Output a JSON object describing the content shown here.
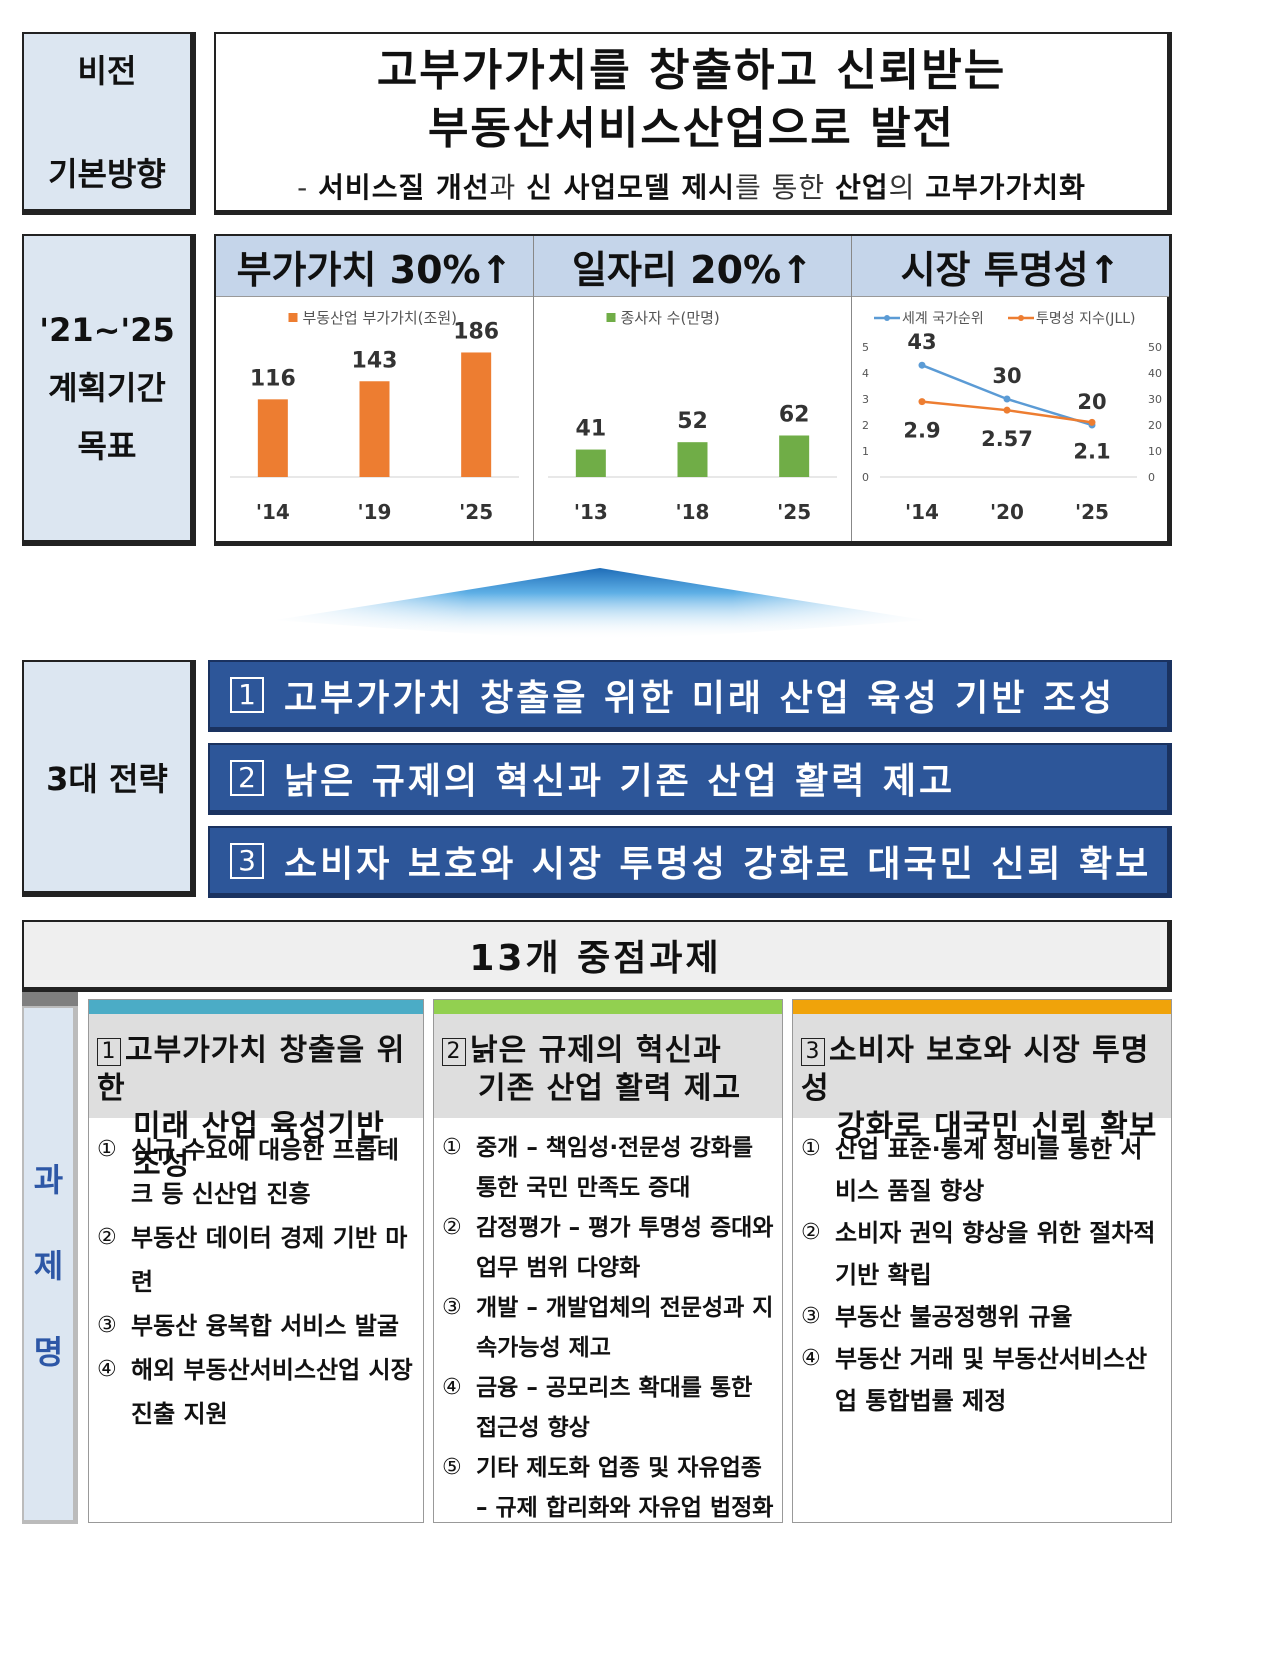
{
  "vision": {
    "label_top": "비전",
    "label_bottom": "기본방향",
    "title_line1": "고부가가치를 창출하고 신뢰받는",
    "title_line2": "부동산서비스산업으로 발전",
    "sub": {
      "dash": "- ",
      "p1": "서비스질 개선",
      "p2": "과 ",
      "p3": "신 사업모델 제시",
      "p4": "를 통한 ",
      "p5": "산업",
      "p6": "의 ",
      "p7": "고부가가치화"
    }
  },
  "targets": {
    "label_line1": "'21~'25",
    "label_line2": "계획기간",
    "label_line3": "목표",
    "goals": [
      {
        "head": "부가가치 30%↑"
      },
      {
        "head": "일자리 20%↑"
      },
      {
        "head": "시장 투명성↑"
      }
    ]
  },
  "chart_data": [
    {
      "type": "bar",
      "legend": "부동산업 부가가치(조원)",
      "categories": [
        "'14",
        "'19",
        "'25"
      ],
      "values": [
        116,
        143,
        186
      ],
      "color": "#ed7d31"
    },
    {
      "type": "bar",
      "legend": "종사자 수(만명)",
      "categories": [
        "'13",
        "'18",
        "'25"
      ],
      "values": [
        41,
        52,
        62
      ],
      "color": "#70ad47"
    },
    {
      "type": "line",
      "categories": [
        "'14",
        "'20",
        "'25"
      ],
      "series": [
        {
          "name": "세계 국가순위",
          "values": [
            43,
            30,
            20
          ],
          "axis": "right",
          "color": "#5b9bd5",
          "labels": [
            "43",
            "30",
            "20"
          ]
        },
        {
          "name": "투명성 지수(JLL)",
          "values": [
            2.9,
            2.57,
            2.1
          ],
          "axis": "left",
          "color": "#ed7d31",
          "labels": [
            "2.9",
            "2.57",
            "2.1"
          ]
        }
      ],
      "left_ticks": [
        "0",
        "1",
        "2",
        "3",
        "4",
        "5"
      ],
      "right_ticks": [
        "0",
        "10",
        "20",
        "30",
        "40",
        "50"
      ],
      "left_range": [
        0,
        5
      ],
      "right_range": [
        0,
        50
      ]
    }
  ],
  "strategies": {
    "label": "3대 전략",
    "items": [
      {
        "num": "1",
        "text": "고부가가치 창출을 위한 미래 산업 육성 기반 조성"
      },
      {
        "num": "2",
        "text": "낡은 규제의 혁신과 기존 산업 활력 제고"
      },
      {
        "num": "3",
        "text": "소비자 보호와 시장 투명성 강화로 대국민 신뢰 확보"
      }
    ]
  },
  "tasks": {
    "header": "13개 중점과제",
    "side_label": [
      "과",
      "제",
      "명"
    ],
    "columns": [
      {
        "num": "1",
        "title1": "고부가가치 창출을 위한",
        "title2": "미래 산업 육성기반 조성",
        "color": "#4bacc6",
        "items": [
          {
            "num": "①",
            "text": "신규 수요에 대응한 프롭테크 등 신산업 진흥"
          },
          {
            "num": "②",
            "text": "부동산 데이터 경제 기반 마련"
          },
          {
            "num": "③",
            "text": "부동산 융복합 서비스 발굴"
          },
          {
            "num": "④",
            "text": "해외 부동산서비스산업 시장 진출 지원"
          }
        ]
      },
      {
        "num": "2",
        "title1": "낡은 규제의 혁신과",
        "title2": "기존 산업 활력 제고",
        "color": "#92d050",
        "items": [
          {
            "num": "①",
            "text": "중개 – 책임성·전문성 강화를 통한 국민 만족도 증대"
          },
          {
            "num": "②",
            "text": "감정평가 – 평가 투명성 증대와 업무 범위 다양화"
          },
          {
            "num": "③",
            "text": "개발 – 개발업체의 전문성과 지속가능성 제고"
          },
          {
            "num": "④",
            "text": "금융 – 공모리츠 확대를 통한 접근성 향상"
          },
          {
            "num": "⑤",
            "text": "기타 제도화 업종 및 자유업종 – 규제 합리화와 자유업 법정화"
          }
        ]
      },
      {
        "num": "3",
        "title1": "소비자 보호와 시장 투명성",
        "title2": "강화로 대국민 신뢰 확보",
        "color": "#f0a30a",
        "items": [
          {
            "num": "①",
            "text": "산업 표준·통계 정비를 통한 서비스 품질 향상"
          },
          {
            "num": "②",
            "text": "소비자 권익 향상을 위한 절차적 기반 확립"
          },
          {
            "num": "③",
            "text": "부동산 불공정행위 규율"
          },
          {
            "num": "④",
            "text": "부동산 거래 및 부동산서비스산업 통합법률 제정"
          }
        ]
      }
    ]
  }
}
